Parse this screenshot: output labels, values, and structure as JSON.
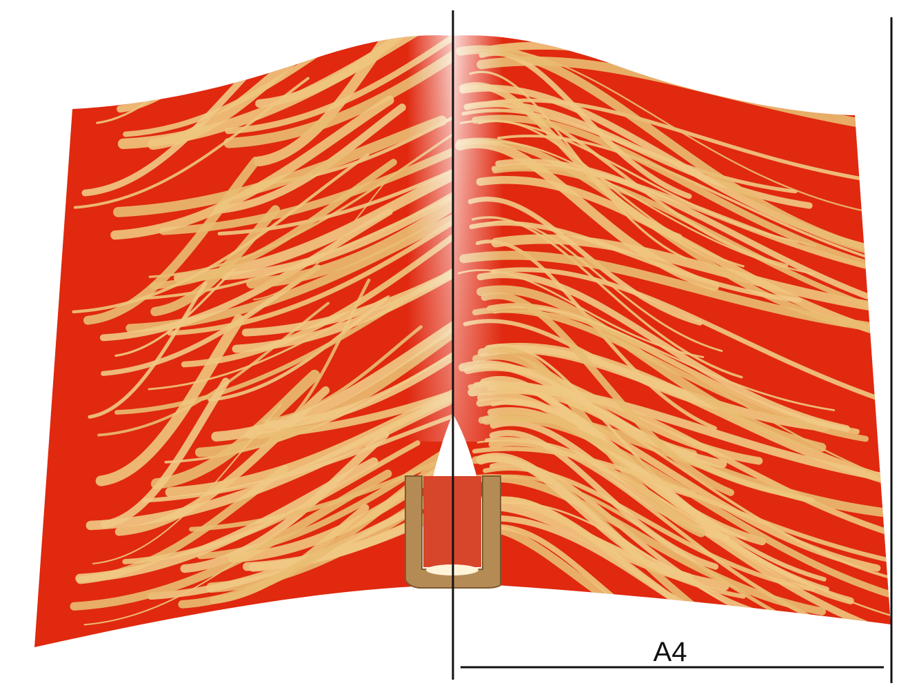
{
  "label": "A4"
}
